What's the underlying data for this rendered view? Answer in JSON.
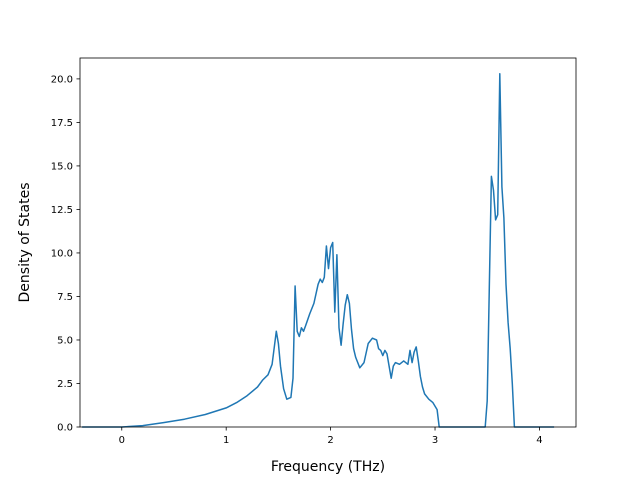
{
  "chart_data": {
    "type": "line",
    "xlabel": "Frequency (THz)",
    "ylabel": "Density of States",
    "xlim": [
      -0.4,
      4.35
    ],
    "ylim": [
      0.0,
      21.2
    ],
    "xticks": [
      0,
      1,
      2,
      3,
      4
    ],
    "xtick_labels": [
      "0",
      "1",
      "2",
      "3",
      "4"
    ],
    "yticks": [
      0.0,
      2.5,
      5.0,
      7.5,
      10.0,
      12.5,
      15.0,
      17.5,
      20.0
    ],
    "ytick_labels": [
      "0.0",
      "2.5",
      "5.0",
      "7.5",
      "10.0",
      "12.5",
      "15.0",
      "17.5",
      "20.0"
    ],
    "grid": false,
    "line_color": "#1f77b4",
    "x": [
      -0.38,
      0.0,
      0.2,
      0.4,
      0.6,
      0.8,
      1.0,
      1.1,
      1.2,
      1.3,
      1.35,
      1.4,
      1.44,
      1.48,
      1.5,
      1.52,
      1.55,
      1.58,
      1.62,
      1.64,
      1.66,
      1.68,
      1.7,
      1.72,
      1.74,
      1.76,
      1.8,
      1.84,
      1.88,
      1.9,
      1.92,
      1.94,
      1.96,
      1.98,
      2.0,
      2.02,
      2.04,
      2.06,
      2.08,
      2.1,
      2.12,
      2.14,
      2.16,
      2.18,
      2.2,
      2.22,
      2.24,
      2.28,
      2.32,
      2.36,
      2.4,
      2.44,
      2.46,
      2.48,
      2.5,
      2.52,
      2.54,
      2.56,
      2.58,
      2.6,
      2.62,
      2.66,
      2.7,
      2.74,
      2.76,
      2.78,
      2.8,
      2.82,
      2.84,
      2.86,
      2.88,
      2.9,
      2.94,
      2.98,
      3.02,
      3.04,
      3.06,
      3.1,
      3.3,
      3.48,
      3.5,
      3.52,
      3.54,
      3.56,
      3.58,
      3.6,
      3.62,
      3.64,
      3.66,
      3.68,
      3.7,
      3.72,
      3.74,
      3.76,
      3.78,
      3.8,
      4.0,
      4.14
    ],
    "y": [
      0.0,
      0.0,
      0.08,
      0.25,
      0.45,
      0.72,
      1.1,
      1.4,
      1.8,
      2.3,
      2.7,
      3.0,
      3.6,
      5.5,
      4.8,
      3.5,
      2.2,
      1.6,
      1.7,
      2.8,
      8.1,
      5.5,
      5.2,
      5.7,
      5.5,
      5.8,
      6.5,
      7.1,
      8.2,
      8.5,
      8.3,
      8.6,
      10.4,
      9.1,
      10.3,
      10.6,
      6.6,
      9.9,
      5.7,
      4.7,
      5.9,
      7.0,
      7.6,
      7.1,
      5.6,
      4.5,
      4.0,
      3.4,
      3.7,
      4.8,
      5.1,
      5.0,
      4.5,
      4.4,
      4.1,
      4.4,
      4.2,
      3.5,
      2.8,
      3.5,
      3.7,
      3.6,
      3.8,
      3.6,
      4.4,
      3.7,
      4.3,
      4.6,
      3.8,
      2.9,
      2.3,
      1.9,
      1.6,
      1.4,
      1.0,
      0.0,
      0.0,
      0.0,
      0.0,
      0.0,
      1.5,
      8.0,
      14.4,
      13.6,
      11.9,
      12.2,
      20.3,
      13.8,
      12.0,
      8.2,
      6.0,
      4.5,
      2.5,
      0.0,
      0.0,
      0.0,
      0.0,
      0.0
    ]
  }
}
